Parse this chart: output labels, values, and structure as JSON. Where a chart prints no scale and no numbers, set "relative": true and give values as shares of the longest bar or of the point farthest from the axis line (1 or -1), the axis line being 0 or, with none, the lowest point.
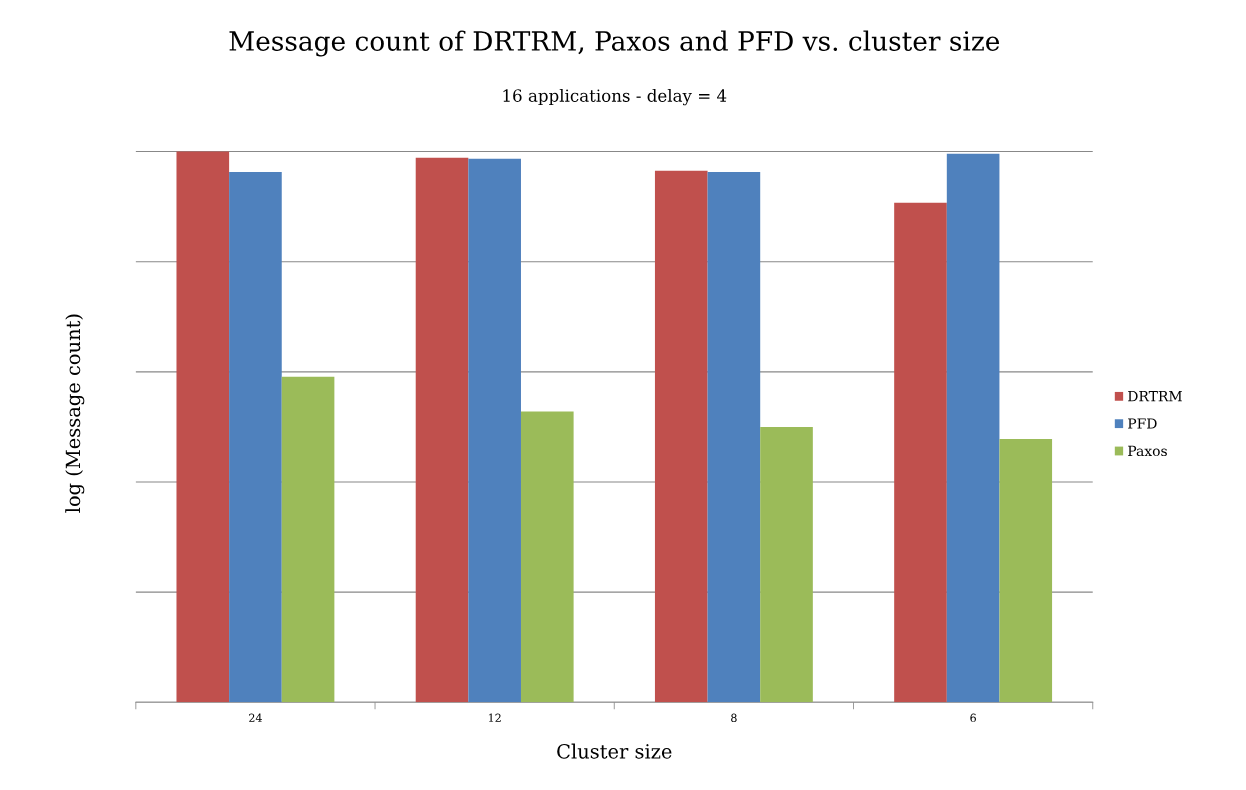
{
  "chart_data": {
    "type": "bar",
    "title": "Message count of DRTRM, Paxos and PFD vs. cluster size",
    "subtitle": "16 applications - delay = 4",
    "xlabel": "Cluster size",
    "ylabel": "log (Message count)",
    "categories": [
      "24",
      "12",
      "8",
      "6"
    ],
    "relative": true,
    "grid": "y",
    "legend": "right",
    "series": [
      {
        "name": "DRTRM",
        "color": "#c0504d",
        "values": [
          1.0,
          0.989,
          0.965,
          0.907
        ]
      },
      {
        "name": "PFD",
        "color": "#4f81bd",
        "values": [
          0.963,
          0.987,
          0.963,
          0.996
        ]
      },
      {
        "name": "Paxos",
        "color": "#9bbb59",
        "values": [
          0.591,
          0.528,
          0.5,
          0.478
        ]
      }
    ]
  }
}
